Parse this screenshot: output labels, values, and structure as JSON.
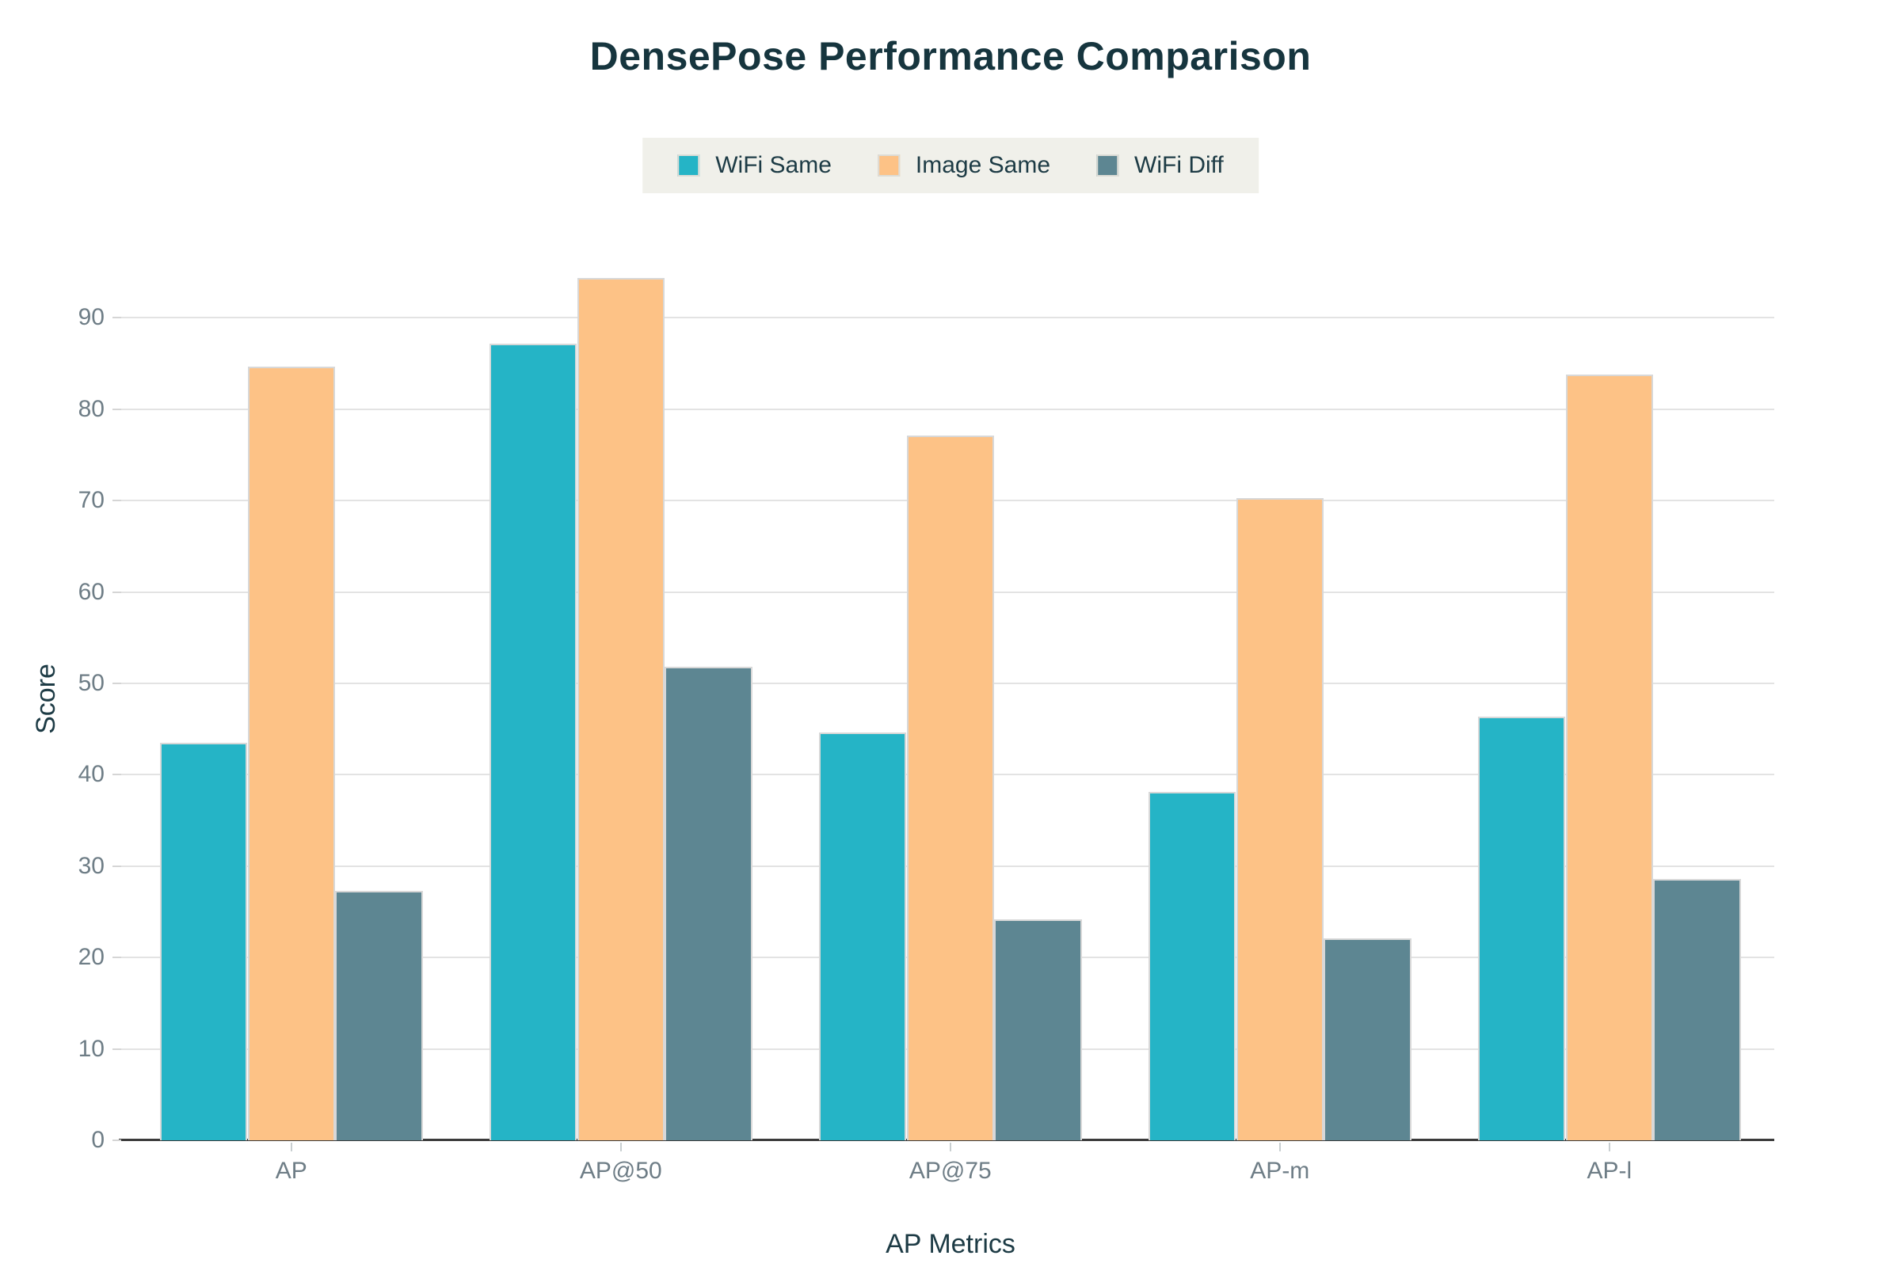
{
  "title": "DensePose Performance Comparison",
  "legend": {
    "items": [
      {
        "label": "WiFi Same",
        "color": "#25b4c6"
      },
      {
        "label": "Image Same",
        "color": "#fdc286"
      },
      {
        "label": "WiFi Diff",
        "color": "#5d8692"
      }
    ]
  },
  "chart_data": {
    "type": "bar",
    "title": "DensePose Performance Comparison",
    "categories": [
      "AP",
      "AP@50",
      "AP@75",
      "AP-m",
      "AP-l"
    ],
    "series": [
      {
        "name": "WiFi Same",
        "color": "#25b4c6",
        "values": [
          43.5,
          87.2,
          44.6,
          38.1,
          46.4
        ]
      },
      {
        "name": "Image Same",
        "color": "#fdc286",
        "values": [
          84.7,
          94.4,
          77.1,
          70.3,
          83.8
        ]
      },
      {
        "name": "WiFi Diff",
        "color": "#5d8692",
        "values": [
          27.3,
          51.8,
          24.2,
          22.1,
          28.6
        ]
      }
    ],
    "xlabel": "AP Metrics",
    "ylabel": "Score",
    "ylim": [
      0,
      100
    ],
    "yticks": [
      0,
      10,
      20,
      30,
      40,
      50,
      60,
      70,
      80,
      90
    ],
    "grid": true,
    "legend_position": "top"
  },
  "colors": {
    "background": "#ffffff",
    "ink": "#16353e",
    "tick_text": "#6e7d86",
    "gridline": "#e3e3e3",
    "axis_line": "#3b3b3b",
    "legend_background": "#f0f0ea",
    "bar_border": "#d8d8d8"
  }
}
